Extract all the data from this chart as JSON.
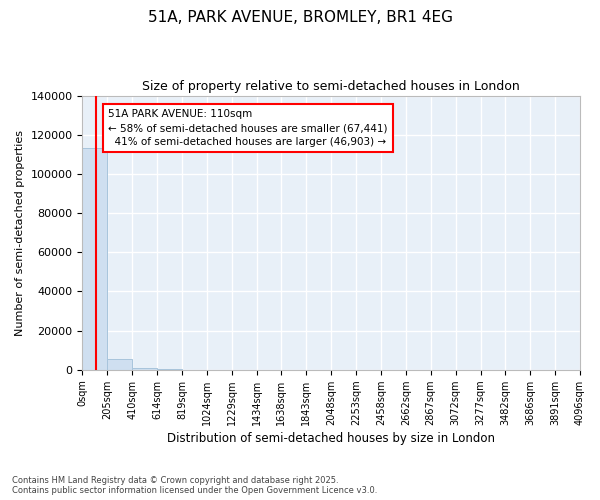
{
  "title": "51A, PARK AVENUE, BROMLEY, BR1 4EG",
  "subtitle": "Size of property relative to semi-detached houses in London",
  "xlabel": "Distribution of semi-detached houses by size in London",
  "ylabel": "Number of semi-detached properties",
  "property_size": 110,
  "pct_smaller": 58,
  "n_smaller": 67441,
  "pct_larger": 41,
  "n_larger": 46903,
  "bar_color": "#cfdff0",
  "bar_edge_color": "#a8c4dc",
  "line_color": "red",
  "footer": "Contains HM Land Registry data © Crown copyright and database right 2025.\nContains public sector information licensed under the Open Government Licence v3.0.",
  "bin_edges": [
    0,
    205,
    410,
    614,
    819,
    1024,
    1229,
    1434,
    1638,
    1843,
    2048,
    2253,
    2458,
    2662,
    2867,
    3072,
    3277,
    3482,
    3686,
    3891,
    4096
  ],
  "bin_labels": [
    "0sqm",
    "205sqm",
    "410sqm",
    "614sqm",
    "819sqm",
    "1024sqm",
    "1229sqm",
    "1434sqm",
    "1638sqm",
    "1843sqm",
    "2048sqm",
    "2253sqm",
    "2458sqm",
    "2662sqm",
    "2867sqm",
    "3072sqm",
    "3277sqm",
    "3482sqm",
    "3686sqm",
    "3891sqm",
    "4096sqm"
  ],
  "bar_heights": [
    113344,
    5400,
    800,
    200,
    80,
    30,
    15,
    8,
    5,
    4,
    3,
    3,
    2,
    2,
    2,
    2,
    1,
    1,
    1,
    1
  ],
  "ylim": [
    0,
    140000
  ],
  "yticks": [
    0,
    20000,
    40000,
    60000,
    80000,
    100000,
    120000,
    140000
  ],
  "fig_bg": "#ffffff",
  "plot_bg": "#e8f0f8",
  "grid_color": "#ffffff"
}
